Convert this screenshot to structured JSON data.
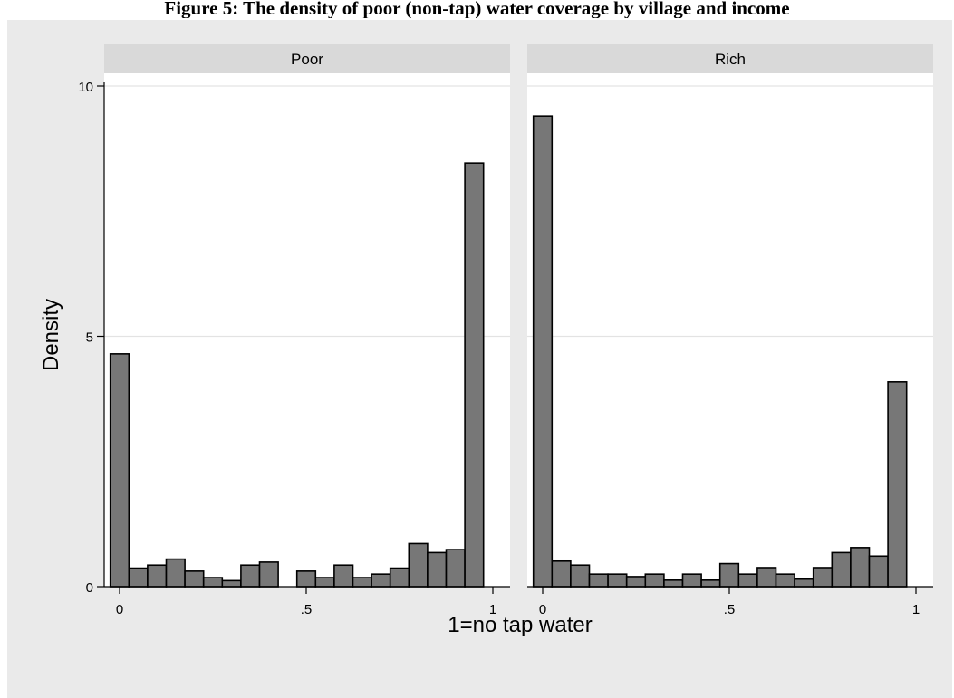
{
  "figure_title": "Figure 5: The density of poor (non-tap) water coverage by village and income",
  "chart_data": {
    "type": "bar",
    "subtype": "histogram",
    "xlabel": "1=no tap water",
    "ylabel": "Density",
    "ylim": [
      0,
      10
    ],
    "xlim": [
      0,
      1
    ],
    "yticks": [
      {
        "value": 0,
        "label": "0"
      },
      {
        "value": 5,
        "label": "5"
      },
      {
        "value": 10,
        "label": "10"
      }
    ],
    "xticks": [
      {
        "value": 0,
        "label": "0"
      },
      {
        "value": 0.5,
        "label": ".5"
      },
      {
        "value": 1,
        "label": "1"
      }
    ],
    "grid": true,
    "bin_width": 0.05,
    "bin_starts": [
      -0.025,
      0.025,
      0.075,
      0.125,
      0.175,
      0.225,
      0.275,
      0.325,
      0.375,
      0.425,
      0.475,
      0.525,
      0.575,
      0.625,
      0.675,
      0.725,
      0.775,
      0.825,
      0.875,
      0.925,
      0.975
    ],
    "colors": {
      "bar_fill": "#777777",
      "bar_stroke": "#000000",
      "strip": "#d9d9d9",
      "outer_background": "#eaeaea",
      "plot_background": "#ffffff",
      "grid": "#e3e3e3"
    },
    "panels": [
      {
        "label": "Poor",
        "values": [
          4.65,
          0.37,
          0.43,
          0.55,
          0.31,
          0.18,
          0.12,
          0.43,
          0.49,
          0,
          0.31,
          0.18,
          0.43,
          0.18,
          0.25,
          0.37,
          0.86,
          0.68,
          0.74,
          8.46,
          0
        ]
      },
      {
        "label": "Rich",
        "values": [
          9.4,
          0.51,
          0.43,
          0.25,
          0.25,
          0.2,
          0.25,
          0.13,
          0.25,
          0.13,
          0.46,
          0.25,
          0.38,
          0.25,
          0.15,
          0.38,
          0.68,
          0.78,
          0.61,
          4.09,
          0
        ]
      }
    ]
  }
}
